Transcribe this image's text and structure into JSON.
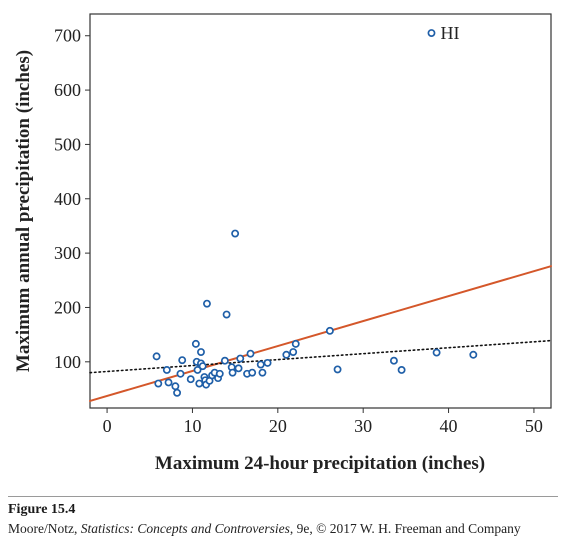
{
  "chart_data": {
    "type": "scatter",
    "title": "",
    "xlabel": "Maximum 24-hour precipitation (inches)",
    "ylabel": "Maximum annual precipitation (inches)",
    "xlim": [
      -2,
      52
    ],
    "ylim": [
      15,
      740
    ],
    "x_ticks": [
      0,
      10,
      20,
      30,
      40,
      50
    ],
    "y_ticks": [
      100,
      200,
      300,
      400,
      500,
      600,
      700
    ],
    "grid": false,
    "marker_color": "#1f5fa8",
    "points": [
      {
        "x": 5.8,
        "y": 110
      },
      {
        "x": 6.0,
        "y": 60
      },
      {
        "x": 7.0,
        "y": 85
      },
      {
        "x": 7.2,
        "y": 62
      },
      {
        "x": 8.0,
        "y": 55
      },
      {
        "x": 8.2,
        "y": 43
      },
      {
        "x": 8.8,
        "y": 103
      },
      {
        "x": 8.6,
        "y": 78
      },
      {
        "x": 9.8,
        "y": 68
      },
      {
        "x": 10.4,
        "y": 133
      },
      {
        "x": 10.5,
        "y": 100
      },
      {
        "x": 10.6,
        "y": 85
      },
      {
        "x": 10.8,
        "y": 60
      },
      {
        "x": 11.0,
        "y": 118
      },
      {
        "x": 11.0,
        "y": 97
      },
      {
        "x": 11.2,
        "y": 92
      },
      {
        "x": 11.4,
        "y": 72
      },
      {
        "x": 11.5,
        "y": 66
      },
      {
        "x": 11.6,
        "y": 58
      },
      {
        "x": 11.7,
        "y": 207
      },
      {
        "x": 12.0,
        "y": 65
      },
      {
        "x": 12.3,
        "y": 75
      },
      {
        "x": 12.6,
        "y": 80
      },
      {
        "x": 13.0,
        "y": 70
      },
      {
        "x": 13.2,
        "y": 78
      },
      {
        "x": 13.8,
        "y": 102
      },
      {
        "x": 14.0,
        "y": 187
      },
      {
        "x": 14.6,
        "y": 90
      },
      {
        "x": 14.7,
        "y": 80
      },
      {
        "x": 15.0,
        "y": 336
      },
      {
        "x": 15.4,
        "y": 88
      },
      {
        "x": 15.6,
        "y": 106
      },
      {
        "x": 16.4,
        "y": 78
      },
      {
        "x": 16.8,
        "y": 115
      },
      {
        "x": 17.0,
        "y": 80
      },
      {
        "x": 18.0,
        "y": 95
      },
      {
        "x": 18.2,
        "y": 80
      },
      {
        "x": 18.8,
        "y": 98
      },
      {
        "x": 21.0,
        "y": 113
      },
      {
        "x": 21.8,
        "y": 118
      },
      {
        "x": 22.1,
        "y": 133
      },
      {
        "x": 26.1,
        "y": 157
      },
      {
        "x": 27.0,
        "y": 86
      },
      {
        "x": 33.6,
        "y": 102
      },
      {
        "x": 34.5,
        "y": 85
      },
      {
        "x": 38.6,
        "y": 117
      },
      {
        "x": 42.9,
        "y": 113
      },
      {
        "x": 38.0,
        "y": 705
      }
    ],
    "lines": [
      {
        "style": "solid",
        "color": "#d4572a",
        "x": [
          -2,
          52
        ],
        "y": [
          28,
          276
        ]
      },
      {
        "style": "dotted",
        "color": "#111111",
        "x": [
          -2,
          52
        ],
        "y": [
          80,
          139
        ]
      }
    ],
    "annotations": [
      {
        "text": "HI",
        "x": 38.0,
        "y": 705
      }
    ]
  },
  "caption": {
    "figure_label": "Figure 15.4",
    "credit_authors": "Moore/Notz, ",
    "credit_title": "Statistics: Concepts and Controversies",
    "credit_rest": ", 9e, © 2017 W. H. Freeman and Company"
  }
}
